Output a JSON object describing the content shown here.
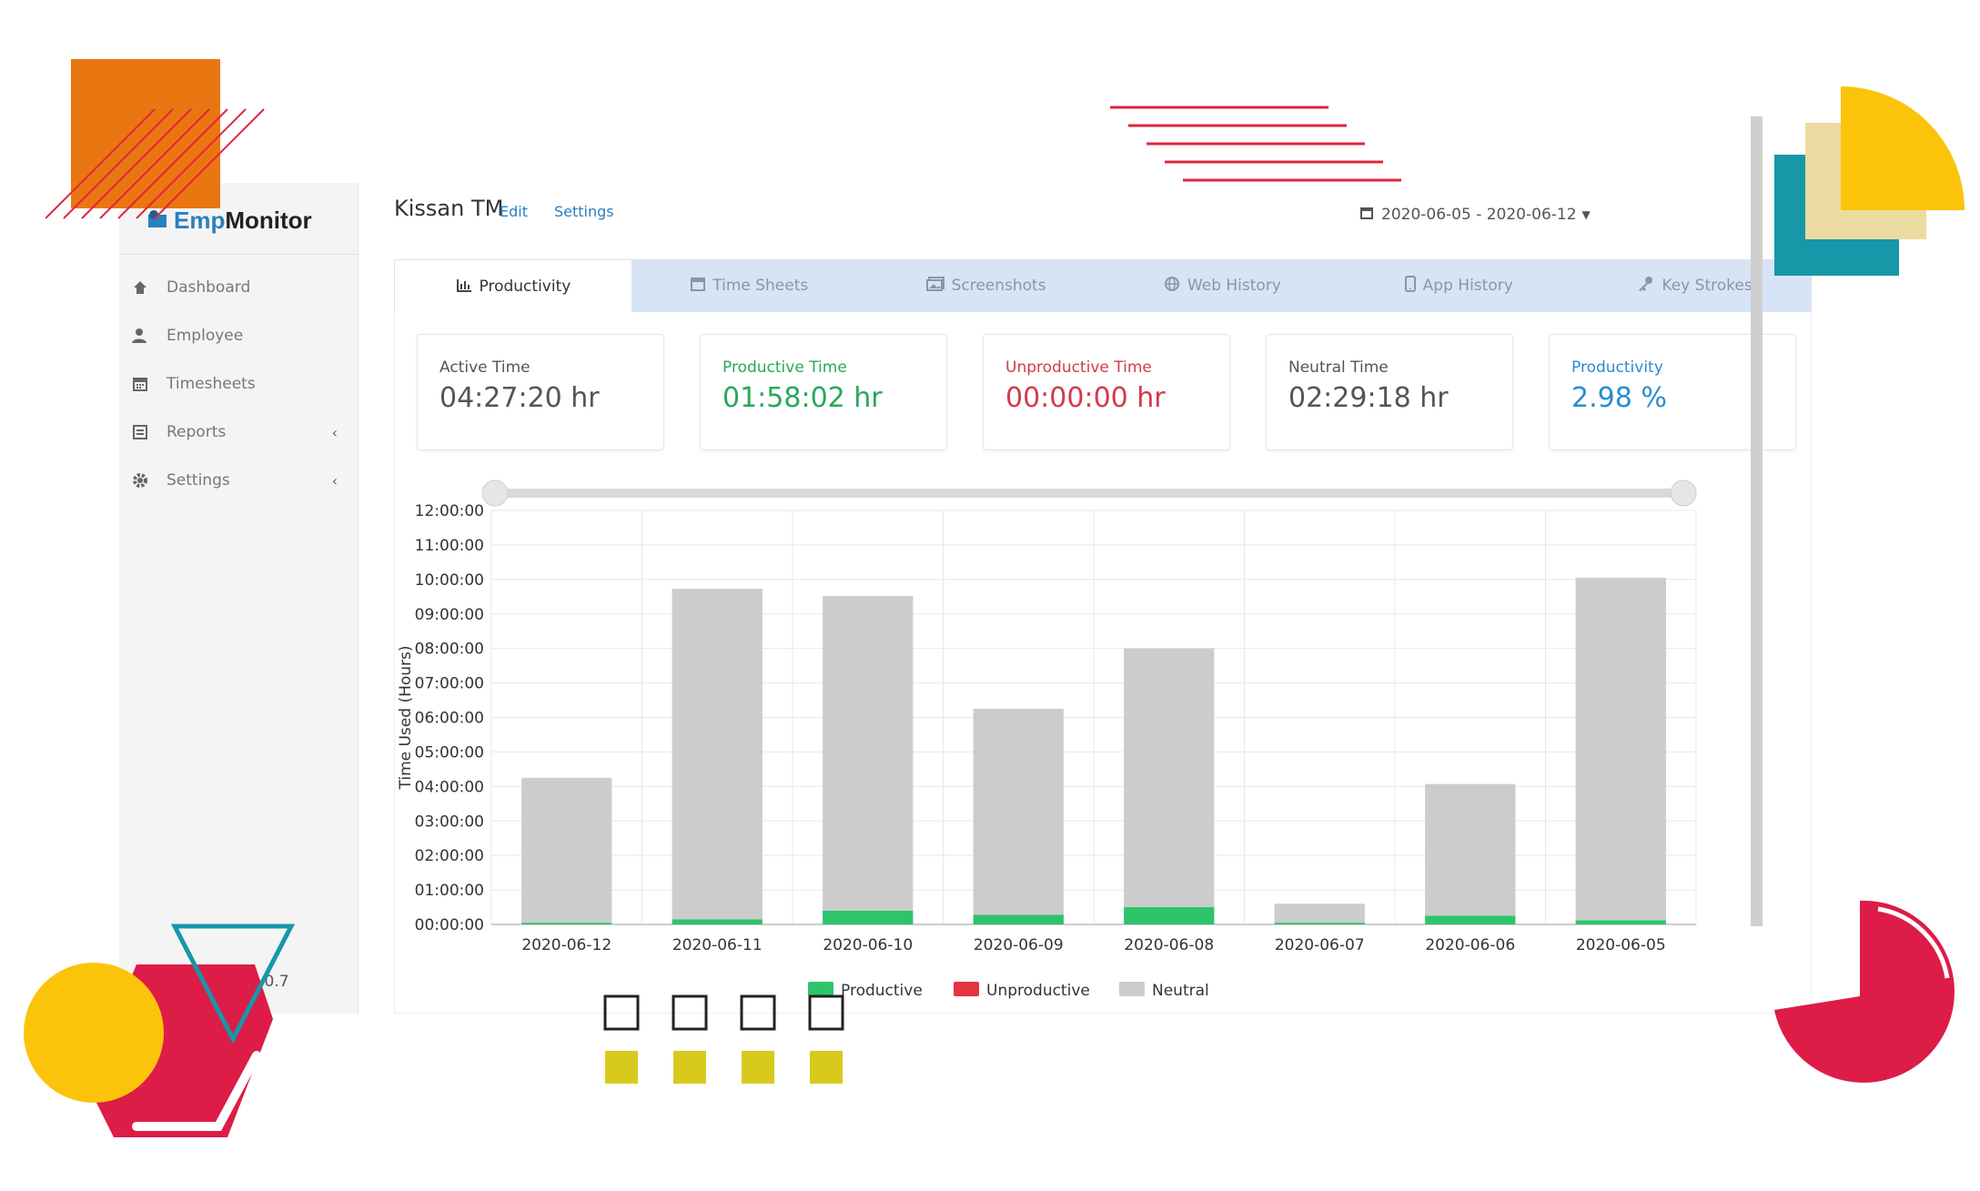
{
  "brand": {
    "name_prefix": "Emp",
    "name_suffix": "Monitor"
  },
  "sidebar": {
    "items": [
      {
        "label": "Dashboard",
        "icon": "home-icon"
      },
      {
        "label": "Employee",
        "icon": "user-icon"
      },
      {
        "label": "Timesheets",
        "icon": "calendar-icon"
      },
      {
        "label": "Reports",
        "icon": "report-icon"
      },
      {
        "label": "Settings",
        "icon": "gear-icon"
      }
    ],
    "version": "ion 1.0.7"
  },
  "header": {
    "user_name": "Kissan TM",
    "edit_label": "Edit",
    "settings_label": "Settings",
    "date_range": "2020-06-05 - 2020-06-12"
  },
  "tabs": [
    {
      "label": "Productivity",
      "icon": "bar-chart-icon",
      "active": true
    },
    {
      "label": "Time Sheets",
      "icon": "calendar-icon"
    },
    {
      "label": "Screenshots",
      "icon": "image-icon"
    },
    {
      "label": "Web History",
      "icon": "globe-icon"
    },
    {
      "label": "App History",
      "icon": "mobile-icon"
    },
    {
      "label": "Key Strokes",
      "icon": "key-icon"
    }
  ],
  "stats": {
    "active": {
      "label": "Active Time",
      "value": "04:27:20 hr"
    },
    "productive": {
      "label": "Productive Time",
      "value": "01:58:02 hr"
    },
    "unproductive": {
      "label": "Unproductive Time",
      "value": "00:00:00 hr"
    },
    "neutral": {
      "label": "Neutral Time",
      "value": "02:29:18 hr"
    },
    "productivity": {
      "label": "Productivity",
      "value": "2.98 %"
    }
  },
  "colors": {
    "productive": "#2ec46a",
    "unproductive": "#e3343f",
    "neutral": "#cccccc",
    "accent": "#2a7fbf",
    "tab_bar": "#d6e4f5"
  },
  "chart_data": {
    "type": "bar",
    "stacked": true,
    "ylabel": "Time Used (Hours)",
    "ylim": [
      0,
      12
    ],
    "yticks": [
      "00:00:00",
      "01:00:00",
      "02:00:00",
      "03:00:00",
      "04:00:00",
      "05:00:00",
      "06:00:00",
      "07:00:00",
      "08:00:00",
      "09:00:00",
      "10:00:00",
      "11:00:00",
      "12:00:00"
    ],
    "categories": [
      "2020-06-12",
      "2020-06-11",
      "2020-06-10",
      "2020-06-09",
      "2020-06-08",
      "2020-06-07",
      "2020-06-06",
      "2020-06-05"
    ],
    "series": [
      {
        "name": "Productive",
        "values": [
          0.05,
          0.15,
          0.4,
          0.28,
          0.5,
          0.05,
          0.25,
          0.12
        ]
      },
      {
        "name": "Unproductive",
        "values": [
          0,
          0,
          0,
          0,
          0,
          0,
          0,
          0
        ]
      },
      {
        "name": "Neutral",
        "values": [
          4.2,
          9.58,
          9.12,
          5.97,
          7.5,
          0.55,
          3.82,
          9.93
        ]
      }
    ],
    "legend_position": "bottom",
    "grid": true
  }
}
